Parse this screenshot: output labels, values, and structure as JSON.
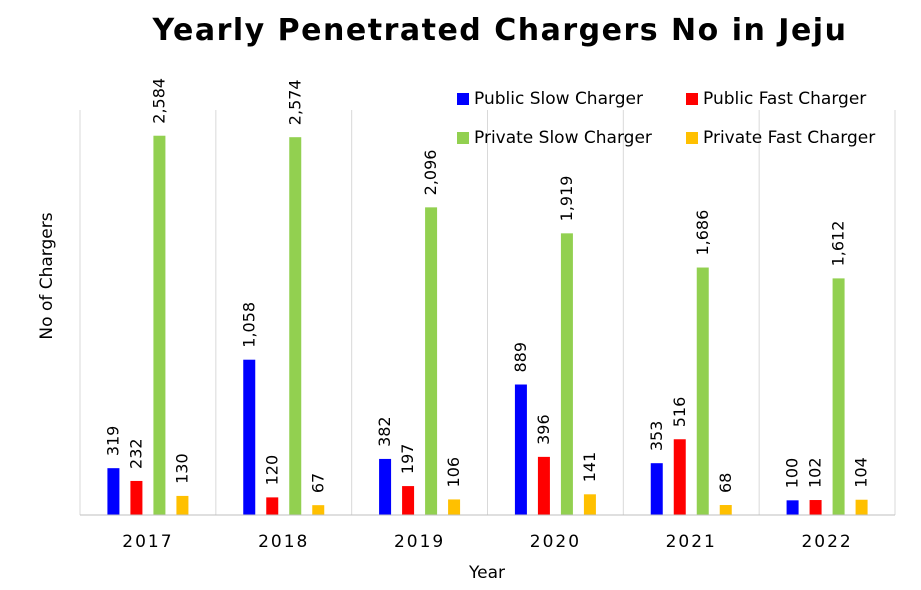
{
  "chart_data": {
    "type": "bar",
    "title": "Yearly Penetrated Chargers No in Jeju",
    "xlabel": "Year",
    "ylabel": "No of Chargers",
    "categories": [
      "2017",
      "2018",
      "2019",
      "2020",
      "2021",
      "2022"
    ],
    "series": [
      {
        "name": "Public Slow Charger",
        "color": "#0000ff",
        "values": [
          319,
          1058,
          382,
          889,
          353,
          100
        ],
        "labels": [
          "319",
          "1,058",
          "382",
          "889",
          "353",
          "100"
        ]
      },
      {
        "name": "Public Fast Charger",
        "color": "#ff0000",
        "values": [
          232,
          120,
          197,
          396,
          516,
          102
        ],
        "labels": [
          "232",
          "120",
          "197",
          "396",
          "516",
          "102"
        ]
      },
      {
        "name": "Private Slow Charger",
        "color": "#92d050",
        "values": [
          2584,
          2574,
          2096,
          1919,
          1686,
          1612
        ],
        "labels": [
          "2,584",
          "2,574",
          "2,096",
          "1,919",
          "1,686",
          "1,612"
        ]
      },
      {
        "name": "Private Fast Charger",
        "color": "#ffc000",
        "values": [
          130,
          67,
          106,
          141,
          68,
          104
        ],
        "labels": [
          "130",
          "67",
          "106",
          "141",
          "68",
          "104"
        ]
      }
    ],
    "ylim": [
      0,
      2950
    ],
    "grid": true,
    "legend": "top-right"
  }
}
